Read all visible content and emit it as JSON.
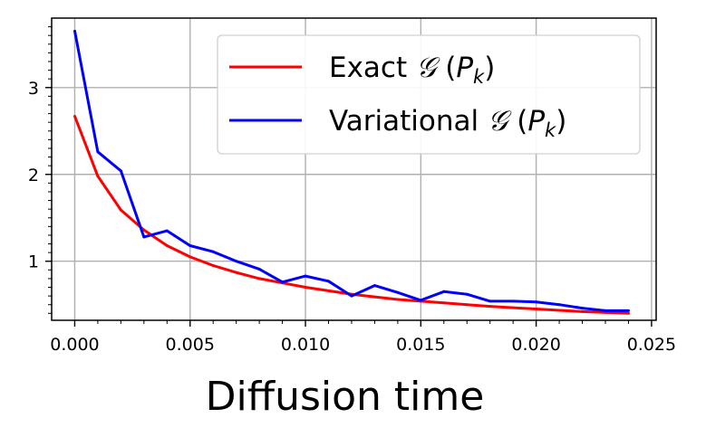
{
  "chart_data": {
    "type": "line",
    "xlabel": "Diffusion time",
    "ylabel": "",
    "xlim": [
      -0.001,
      0.0252
    ],
    "ylim": [
      0.32,
      3.8
    ],
    "xticks": [
      0.0,
      0.005,
      0.01,
      0.015,
      0.02,
      0.025
    ],
    "xtick_labels": [
      "0.000",
      "0.005",
      "0.010",
      "0.015",
      "0.020",
      "0.025"
    ],
    "yticks": [
      1,
      2,
      3
    ],
    "ytick_labels": [
      "1",
      "2",
      "3"
    ],
    "grid": true,
    "legend_position": "top-right",
    "x": [
      0.0,
      0.001,
      0.002,
      0.003,
      0.004,
      0.005,
      0.006,
      0.007,
      0.008,
      0.009,
      0.01,
      0.011,
      0.012,
      0.013,
      0.014,
      0.015,
      0.016,
      0.017,
      0.018,
      0.019,
      0.02,
      0.021,
      0.022,
      0.023,
      0.024
    ],
    "series": [
      {
        "legend_text": "Exact",
        "legend_symbol": "𝒢",
        "legend_arg": "P",
        "legend_sub": "k",
        "color": "#ff0000",
        "values": [
          2.67,
          1.98,
          1.59,
          1.36,
          1.18,
          1.05,
          0.95,
          0.87,
          0.8,
          0.75,
          0.7,
          0.66,
          0.62,
          0.59,
          0.56,
          0.54,
          0.52,
          0.5,
          0.48,
          0.465,
          0.45,
          0.435,
          0.42,
          0.41,
          0.4
        ]
      },
      {
        "legend_text": "Variational",
        "legend_symbol": "𝒢",
        "legend_arg": "P",
        "legend_sub": "k",
        "color": "#0000ff",
        "values": [
          3.65,
          2.26,
          2.04,
          1.28,
          1.35,
          1.18,
          1.11,
          1.0,
          0.91,
          0.76,
          0.83,
          0.77,
          0.6,
          0.72,
          0.64,
          0.55,
          0.65,
          0.62,
          0.54,
          0.54,
          0.53,
          0.5,
          0.46,
          0.43,
          0.43
        ]
      }
    ]
  }
}
